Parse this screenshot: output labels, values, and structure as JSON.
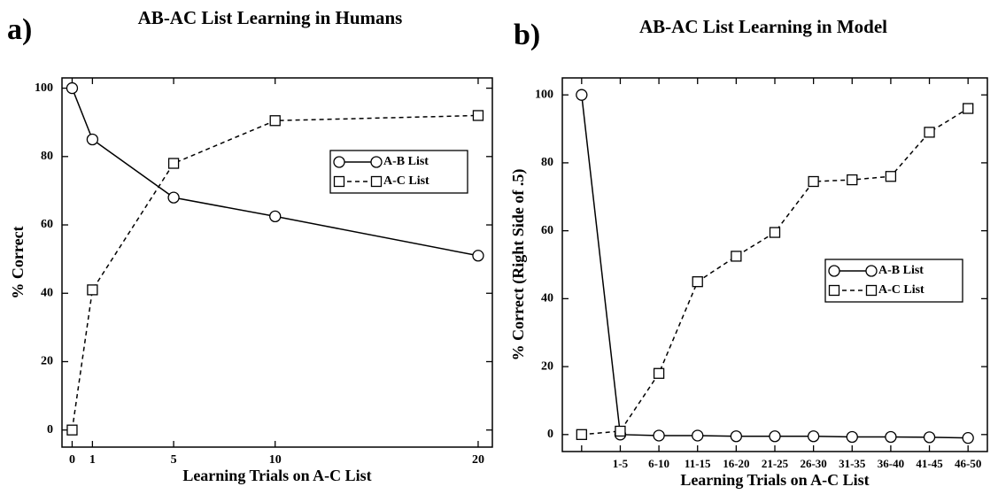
{
  "chart_data": [
    {
      "type": "line",
      "label": "a)",
      "title": "AB-AC List Learning in Humans",
      "xlabel": "Learning Trials on A-C List",
      "ylabel": "% Correct",
      "x": [
        0,
        1,
        5,
        10,
        20
      ],
      "xlim": [
        -0.5,
        20.7
      ],
      "xticks": [
        0,
        1,
        5,
        10,
        20
      ],
      "ylim": [
        -5,
        103
      ],
      "yticks": [
        0,
        20,
        40,
        60,
        80,
        100
      ],
      "legend": "upper right",
      "series": [
        {
          "name": "A-B List",
          "color": "#000000",
          "line_style": "solid",
          "marker": "circle",
          "values": [
            100,
            85,
            68,
            62.5,
            51
          ]
        },
        {
          "name": "A-C List",
          "color": "#000000",
          "line_style": "dashed",
          "marker": "square",
          "values": [
            0,
            41,
            78,
            90.5,
            92
          ]
        }
      ]
    },
    {
      "type": "line",
      "label": "b)",
      "title": "AB-AC List Learning in Model",
      "xlabel": "Learning Trials on A-C List",
      "ylabel": "% Correct (Right Side of .5)",
      "categories": [
        null,
        "1-5",
        "6-10",
        "11-15",
        "16-20",
        "21-25",
        "26-30",
        "31-35",
        "36-40",
        "41-45",
        "46-50"
      ],
      "ylim": [
        -5,
        105
      ],
      "yticks": [
        0,
        20,
        40,
        60,
        80,
        100
      ],
      "legend": "center right",
      "series": [
        {
          "name": "A-B List",
          "color": "#000000",
          "line_style": "solid",
          "marker": "circle",
          "values": [
            100,
            0,
            -0.3,
            -0.3,
            -0.5,
            -0.5,
            -0.5,
            -0.7,
            -0.7,
            -0.8,
            -1
          ]
        },
        {
          "name": "A-C List",
          "color": "#000000",
          "line_style": "dashed",
          "marker": "square",
          "values": [
            0,
            1,
            18,
            45,
            52.5,
            59.5,
            74.5,
            75,
            76,
            89,
            96
          ]
        }
      ]
    }
  ]
}
